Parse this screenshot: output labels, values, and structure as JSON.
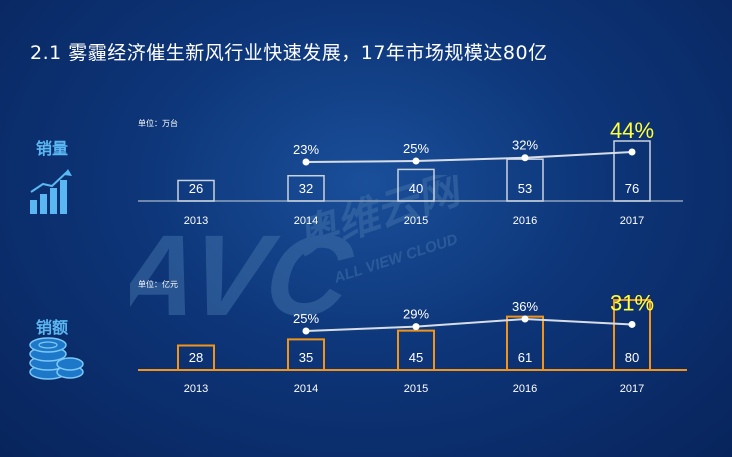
{
  "title": "2.1  雾霾经济催生新风行业快速发展，17年市场规模达80亿",
  "watermark": {
    "logo": "AVC",
    "brand_cn": "奥维云网",
    "brand_en": "ALL VIEW CLOUD"
  },
  "colors": {
    "background": "#0d3578",
    "sales_volume_bar": "#c9d3de",
    "sales_amount_bar": "#f29418",
    "growth_line": "#d7dde6",
    "highlight": "#ffff3a",
    "side_label": "#5ab7f2"
  },
  "chart_data": [
    {
      "type": "bar",
      "name": "sales_volume",
      "side_label": "销量",
      "icon": "rising-bar-chart-icon",
      "unit_label": "单位：万台",
      "categories": [
        "2013",
        "2014",
        "2015",
        "2016",
        "2017"
      ],
      "values": [
        26,
        32,
        40,
        53,
        76
      ],
      "value_labels": [
        "26",
        "32",
        "40",
        "53",
        "76"
      ],
      "growth_line": {
        "type": "line",
        "x": [
          "2014",
          "2015",
          "2016",
          "2017"
        ],
        "labels": [
          "23%",
          "25%",
          "32%",
          "44%"
        ],
        "values": [
          23,
          25,
          32,
          44
        ],
        "highlight_last": true
      }
    },
    {
      "type": "bar",
      "name": "sales_amount",
      "side_label": "销额",
      "icon": "coin-stack-icon",
      "unit_label": "单位：亿元",
      "categories": [
        "2013",
        "2014",
        "2015",
        "2016",
        "2017"
      ],
      "values": [
        28,
        35,
        45,
        61,
        80
      ],
      "value_labels": [
        "28",
        "35",
        "45",
        "61",
        "80"
      ],
      "growth_line": {
        "type": "line",
        "x": [
          "2014",
          "2015",
          "2016",
          "2017"
        ],
        "labels": [
          "25%",
          "29%",
          "36%",
          "31%"
        ],
        "values": [
          25,
          29,
          36,
          31
        ],
        "highlight_last": true
      }
    }
  ]
}
